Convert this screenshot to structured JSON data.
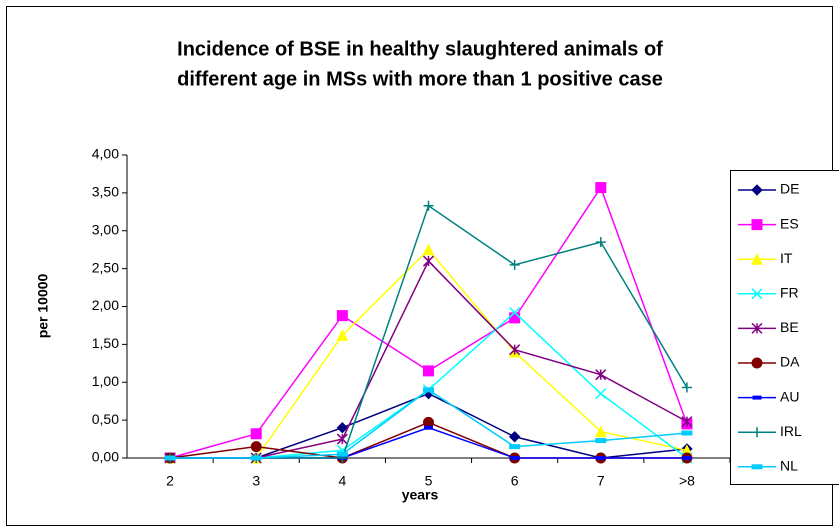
{
  "chart_data": {
    "type": "line",
    "title": [
      "Incidence of BSE in healthy slaughtered animals of",
      "different age in MSs with more than 1 positive case"
    ],
    "x_label": "years",
    "y_label": "per 10000",
    "categories": [
      "2",
      "3",
      "4",
      "5",
      "6",
      "7",
      ">8"
    ],
    "ylim": [
      0,
      4
    ],
    "yticks": [
      {
        "value": 0,
        "label": "0,00"
      },
      {
        "value": 0.5,
        "label": "0,50"
      },
      {
        "value": 1,
        "label": "1,00"
      },
      {
        "value": 1.5,
        "label": "1,50"
      },
      {
        "value": 2,
        "label": "2,00"
      },
      {
        "value": 2.5,
        "label": "2,50"
      },
      {
        "value": 3,
        "label": "3,00"
      },
      {
        "value": 3.5,
        "label": "3,50"
      },
      {
        "value": 4,
        "label": "4,00"
      }
    ],
    "grid": false,
    "legend": "right",
    "series": [
      {
        "name": "DE",
        "color": "#000080",
        "marker": "diamond",
        "values": [
          0,
          0,
          0.4,
          0.85,
          0.28,
          0,
          0.12
        ]
      },
      {
        "name": "ES",
        "color": "#FF00FF",
        "marker": "square",
        "values": [
          0,
          0.32,
          1.88,
          1.15,
          1.85,
          3.57,
          0.45
        ]
      },
      {
        "name": "IT",
        "color": "#FFFF00",
        "marker": "triangle",
        "values": [
          0,
          0,
          1.62,
          2.75,
          1.4,
          0.35,
          0.1
        ]
      },
      {
        "name": "FR",
        "color": "#00FFFF",
        "marker": "x",
        "values": [
          0,
          0,
          0.1,
          0.9,
          1.92,
          0.85,
          0
        ]
      },
      {
        "name": "BE",
        "color": "#800080",
        "marker": "star",
        "values": [
          0,
          0,
          0.25,
          2.6,
          1.43,
          1.1,
          0.48
        ]
      },
      {
        "name": "DA",
        "color": "#800000",
        "marker": "circle",
        "values": [
          0,
          0.15,
          0,
          0.47,
          0,
          0,
          0
        ]
      },
      {
        "name": "AU",
        "color": "#0000FF",
        "marker": "dash",
        "values": [
          0,
          0,
          0,
          0.4,
          0,
          0,
          0
        ]
      },
      {
        "name": "IRL",
        "color": "#008080",
        "marker": "plus",
        "values": [
          0,
          0,
          0,
          3.33,
          2.55,
          2.85,
          0.93
        ]
      },
      {
        "name": "NL",
        "color": "#00CCFF",
        "marker": "bar",
        "values": [
          0,
          0,
          0.05,
          0.9,
          0.15,
          0.23,
          0.33
        ]
      }
    ]
  }
}
